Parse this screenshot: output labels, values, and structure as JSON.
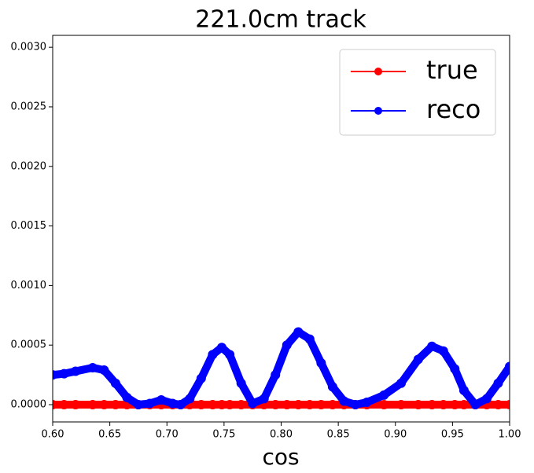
{
  "chart_data": {
    "type": "line",
    "title": "221.0cm track",
    "x_label": "cos",
    "x": [
      0.6,
      0.61,
      0.62,
      0.635,
      0.645,
      0.655,
      0.665,
      0.675,
      0.685,
      0.695,
      0.705,
      0.712,
      0.72,
      0.73,
      0.74,
      0.748,
      0.755,
      0.765,
      0.775,
      0.785,
      0.795,
      0.805,
      0.815,
      0.825,
      0.835,
      0.845,
      0.855,
      0.865,
      0.875,
      0.89,
      0.905,
      0.92,
      0.932,
      0.942,
      0.952,
      0.96,
      0.97,
      0.98,
      0.99,
      1.0
    ],
    "series": [
      {
        "name": "true",
        "color": "#ff0000",
        "values": [
          0,
          0,
          0,
          0,
          0,
          0,
          0,
          0,
          0,
          0,
          0,
          0,
          0,
          0,
          0,
          0,
          0,
          0,
          0,
          0,
          0,
          0,
          0,
          0,
          0,
          0,
          0,
          0,
          0,
          0,
          0,
          0,
          0,
          0,
          0,
          0,
          0,
          0,
          0,
          0
        ]
      },
      {
        "name": "reco",
        "color": "#0000ff",
        "values": [
          0.00025,
          0.00026,
          0.00028,
          0.00031,
          0.00029,
          0.00018,
          6e-05,
          0.0,
          1e-05,
          4e-05,
          1e-05,
          0.0,
          5e-05,
          0.00022,
          0.00042,
          0.00048,
          0.00042,
          0.00018,
          1e-05,
          5e-05,
          0.00025,
          0.0005,
          0.00061,
          0.00055,
          0.00035,
          0.00015,
          3e-05,
          0.0,
          2e-05,
          8e-05,
          0.00018,
          0.00038,
          0.00049,
          0.00045,
          0.0003,
          0.00012,
          0.0,
          5e-05,
          0.00018,
          0.00032
        ]
      }
    ],
    "xlim": [
      0.6,
      1.0
    ],
    "ylim": [
      -0.000145,
      0.0031
    ],
    "xticks": [
      {
        "value": 0.6,
        "label": "0.60"
      },
      {
        "value": 0.65,
        "label": "0.65"
      },
      {
        "value": 0.7,
        "label": "0.70"
      },
      {
        "value": 0.75,
        "label": "0.75"
      },
      {
        "value": 0.8,
        "label": "0.80"
      },
      {
        "value": 0.85,
        "label": "0.85"
      },
      {
        "value": 0.9,
        "label": "0.90"
      },
      {
        "value": 0.95,
        "label": "0.95"
      },
      {
        "value": 1.0,
        "label": "1.00"
      }
    ],
    "yticks": [
      {
        "value": 0,
        "label": "0.0000"
      },
      {
        "value": 0.0005,
        "label": "0.0005"
      },
      {
        "value": 0.001,
        "label": "0.0010"
      },
      {
        "value": 0.0015,
        "label": "0.0015"
      },
      {
        "value": 0.002,
        "label": "0.0020"
      },
      {
        "value": 0.0025,
        "label": "0.0025"
      },
      {
        "value": 0.003,
        "label": "0.0030"
      }
    ],
    "legend": "upper right"
  }
}
